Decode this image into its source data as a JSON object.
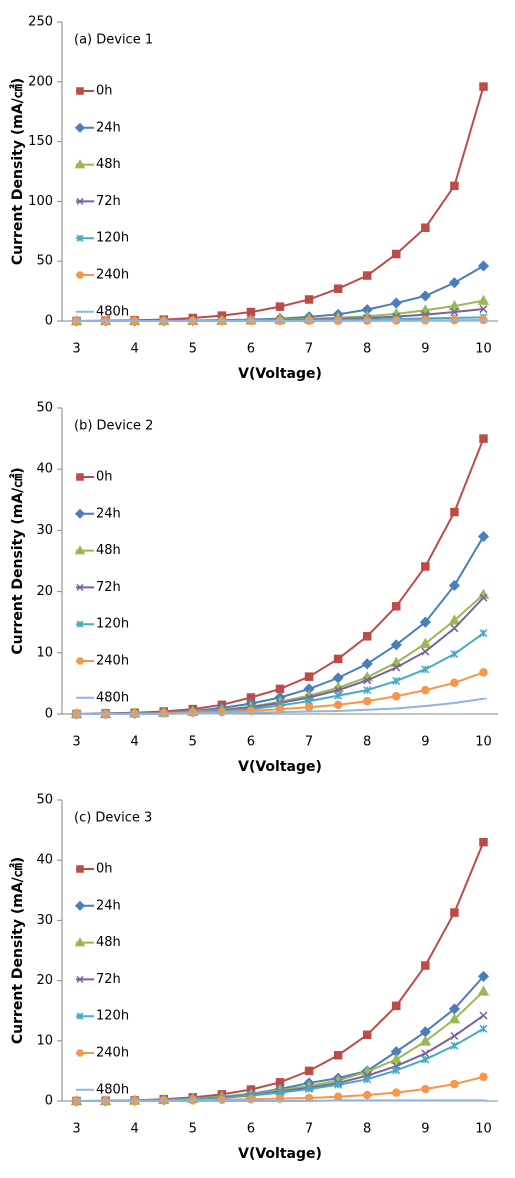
{
  "chart_data": [
    {
      "type": "line",
      "title": "(a) Device 1",
      "x_label": "V(Voltage)",
      "y_label": "Current Density (mA/㎠)",
      "categories": [
        "3",
        null,
        "4",
        null,
        "5",
        null,
        "6",
        null,
        "7",
        null,
        "8",
        null,
        "9",
        null,
        "10"
      ],
      "ylim": [
        0,
        250
      ],
      "yticks": [
        0,
        50,
        100,
        150,
        200,
        250
      ],
      "legend": "upper left",
      "grid": false,
      "series": [
        {
          "name": "0h",
          "color": "#be4b48",
          "marker": "square",
          "values": [
            0,
            0.3,
            0.6,
            1.2,
            2.5,
            4.5,
            7.5,
            12,
            18,
            27,
            38,
            56,
            78,
            113,
            196
          ]
        },
        {
          "name": "24h",
          "color": "#4a7ebb",
          "marker": "diamond",
          "values": [
            0,
            0,
            0.1,
            0.2,
            0.4,
            0.7,
            1.2,
            2,
            3.5,
            5.5,
            9.5,
            15,
            21,
            32,
            46
          ]
        },
        {
          "name": "48h",
          "color": "#98b954",
          "marker": "triangle",
          "values": [
            0,
            0,
            0,
            0.1,
            0.2,
            0.4,
            0.7,
            1.1,
            1.8,
            2.8,
            4,
            6,
            9,
            12.5,
            17
          ]
        },
        {
          "name": "72h",
          "color": "#7d60a0",
          "marker": "x",
          "values": [
            0,
            0,
            0,
            0,
            0.1,
            0.2,
            0.4,
            0.7,
            1.1,
            1.7,
            2.5,
            3.7,
            5.3,
            7.5,
            10
          ]
        },
        {
          "name": "120h",
          "color": "#46aac5",
          "marker": "star",
          "values": [
            0,
            0,
            0,
            0,
            0,
            0.1,
            0.2,
            0.3,
            0.5,
            0.8,
            1.1,
            1.6,
            2.2,
            2.6,
            3
          ]
        },
        {
          "name": "240h",
          "color": "#f79646",
          "marker": "circle",
          "values": [
            0,
            0,
            0,
            0,
            0,
            0,
            0.1,
            0.1,
            0.2,
            0.2,
            0.3,
            0.4,
            0.5,
            0.6,
            0.8
          ]
        },
        {
          "name": "480h",
          "color": "#8eb4e3",
          "marker": "plus",
          "values": [
            0,
            0,
            0,
            0,
            0,
            0,
            0,
            0,
            0.1,
            0.1,
            0.1,
            0.1,
            0.2,
            0.2,
            0.3
          ]
        }
      ]
    },
    {
      "type": "line",
      "title": "(b) Device 2",
      "x_label": "V(Voltage)",
      "y_label": "Current Density (mA/㎠)",
      "categories": [
        "3",
        null,
        "4",
        null,
        "5",
        null,
        "6",
        null,
        "7",
        null,
        "8",
        null,
        "9",
        null,
        "10"
      ],
      "ylim": [
        0,
        50
      ],
      "yticks": [
        0,
        10,
        20,
        30,
        40,
        50
      ],
      "legend": "upper left",
      "grid": false,
      "series": [
        {
          "name": "0h",
          "color": "#be4b48",
          "marker": "square",
          "values": [
            0,
            0.1,
            0.2,
            0.4,
            0.8,
            1.5,
            2.7,
            4.1,
            6.1,
            9,
            12.7,
            17.6,
            24.1,
            33,
            45
          ]
        },
        {
          "name": "24h",
          "color": "#4a7ebb",
          "marker": "diamond",
          "values": [
            0,
            0.05,
            0.1,
            0.3,
            0.5,
            1,
            1.7,
            2.7,
            4.1,
            5.9,
            8.2,
            11.3,
            15,
            21,
            29
          ]
        },
        {
          "name": "48h",
          "color": "#98b954",
          "marker": "triangle",
          "values": [
            0,
            0,
            0.1,
            0.2,
            0.4,
            0.7,
            1.2,
            2,
            3,
            4.3,
            6,
            8.4,
            11.5,
            15.3,
            19.5
          ]
        },
        {
          "name": "72h",
          "color": "#7d60a0",
          "marker": "x",
          "values": [
            0,
            0,
            0.1,
            0.2,
            0.3,
            0.6,
            1.1,
            1.8,
            2.7,
            3.9,
            5.5,
            7.6,
            10.2,
            14,
            19
          ]
        },
        {
          "name": "120h",
          "color": "#46aac5",
          "marker": "star",
          "values": [
            0,
            0,
            0.1,
            0.1,
            0.3,
            0.5,
            0.8,
            1.4,
            2.1,
            3,
            3.9,
            5.4,
            7.3,
            9.8,
            13.2
          ]
        },
        {
          "name": "240h",
          "color": "#f79646",
          "marker": "circle",
          "values": [
            0,
            0,
            0,
            0.1,
            0.2,
            0.3,
            0.5,
            0.8,
            1.1,
            1.5,
            2.1,
            2.9,
            3.9,
            5.1,
            6.8
          ]
        },
        {
          "name": "480h",
          "color": "#8eb4e3",
          "marker": "plus",
          "values": [
            0,
            0,
            0,
            0,
            0.1,
            0.1,
            0.2,
            0.3,
            0.4,
            0.5,
            0.7,
            0.9,
            1.3,
            1.8,
            2.5
          ]
        }
      ]
    },
    {
      "type": "line",
      "title": "(c) Device 3",
      "x_label": "V(Voltage)",
      "y_label": "Current Density (mA/㎠)",
      "categories": [
        "3",
        null,
        "4",
        null,
        "5",
        null,
        "6",
        null,
        "7",
        null,
        "8",
        null,
        "9",
        null,
        "10"
      ],
      "ylim": [
        0,
        50
      ],
      "yticks": [
        0,
        10,
        20,
        30,
        40,
        50
      ],
      "legend": "upper left",
      "grid": false,
      "series": [
        {
          "name": "0h",
          "color": "#be4b48",
          "marker": "square",
          "values": [
            0,
            0.05,
            0.1,
            0.3,
            0.6,
            1.1,
            1.9,
            3.1,
            5,
            7.6,
            11,
            15.8,
            22.5,
            31.3,
            43
          ]
        },
        {
          "name": "24h",
          "color": "#4a7ebb",
          "marker": "diamond",
          "values": [
            0,
            0,
            0.1,
            0.2,
            0.4,
            0.7,
            1.2,
            2,
            3,
            3.8,
            5,
            8.2,
            11.5,
            15.3,
            20.7
          ]
        },
        {
          "name": "48h",
          "color": "#98b954",
          "marker": "triangle",
          "values": [
            0,
            0,
            0.1,
            0.2,
            0.4,
            0.7,
            1.1,
            1.8,
            2.5,
            3.4,
            4.9,
            6.9,
            9.9,
            13.6,
            18.2
          ]
        },
        {
          "name": "72h",
          "color": "#7d60a0",
          "marker": "x",
          "values": [
            0,
            0,
            0.1,
            0.2,
            0.3,
            0.6,
            1,
            1.6,
            2.2,
            3,
            4.2,
            5.8,
            7.9,
            10.8,
            14.2
          ]
        },
        {
          "name": "120h",
          "color": "#46aac5",
          "marker": "star",
          "values": [
            0,
            0,
            0.1,
            0.1,
            0.3,
            0.5,
            0.9,
            1.4,
            2,
            2.7,
            3.6,
            5.1,
            6.9,
            9.2,
            12
          ]
        },
        {
          "name": "240h",
          "color": "#f79646",
          "marker": "circle",
          "values": [
            0,
            0,
            0,
            0.1,
            0.1,
            0.2,
            0.3,
            0.4,
            0.5,
            0.7,
            1,
            1.4,
            2,
            2.8,
            4
          ]
        },
        {
          "name": "480h",
          "color": "#8eb4e3",
          "marker": "plus",
          "values": [
            0,
            0,
            0,
            0,
            0,
            0,
            0,
            0,
            0,
            0.1,
            0.1,
            0.1,
            0.1,
            0.1,
            0.1
          ]
        }
      ]
    }
  ]
}
